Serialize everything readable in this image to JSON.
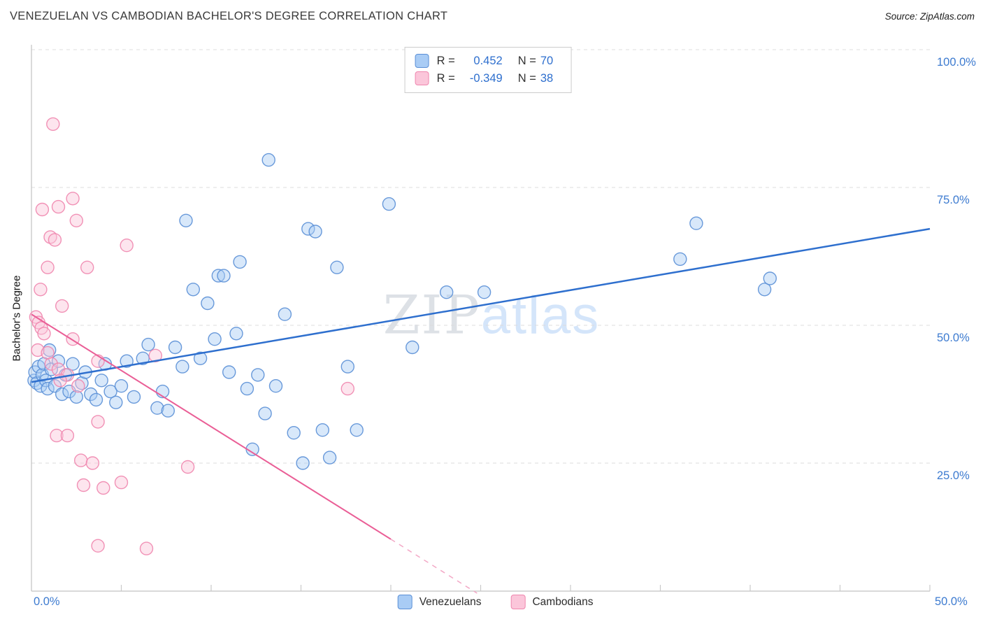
{
  "header": {
    "title": "VENEZUELAN VS CAMBODIAN BACHELOR'S DEGREE CORRELATION CHART",
    "source": "Source: ZipAtlas.com"
  },
  "colors": {
    "accent_blue": "#2e6fce",
    "tick_label_blue": "#3d7bd0",
    "grid_line": "#dcdcdc",
    "axis_line": "#c2c2c2",
    "title_text": "#3a3a3a",
    "watermark_gray": "#ccd2da",
    "watermark_blue": "#b9d5f8"
  },
  "stats_box": {
    "rows": [
      {
        "r_label": "R =",
        "r_value": "0.452",
        "n_label": "N =",
        "n_value": "70"
      },
      {
        "r_label": "R =",
        "r_value": "-0.349",
        "n_label": "N =",
        "n_value": "38"
      }
    ]
  },
  "axes": {
    "y_axis_label": "Bachelor's Degree",
    "y_tick_labels": [
      "100.0%",
      "75.0%",
      "50.0%",
      "25.0%"
    ],
    "x_min_label": "0.0%",
    "x_max_label": "50.0%"
  },
  "legend": {
    "items": [
      {
        "label": "Venezuelans"
      },
      {
        "label": "Cambodians"
      }
    ]
  },
  "watermark": {
    "part1": "ZIP",
    "part2": "atlas"
  },
  "chart_data": {
    "type": "scatter",
    "title": "VENEZUELAN VS CAMBODIAN BACHELOR'S DEGREE CORRELATION CHART",
    "ylabel": "Bachelor's Degree",
    "x_range": [
      0,
      50
    ],
    "y_range": [
      0,
      100
    ],
    "y_gridlines": [
      100,
      75,
      50,
      25
    ],
    "x_tick_step": 5,
    "grid": "horizontal-dashed",
    "legend_position": "bottom-center",
    "series": [
      {
        "name": "Venezuelans",
        "R": 0.452,
        "N": 70,
        "fill": "#a9ccf5",
        "stroke": "#5a8fd6",
        "points": [
          [
            0.15,
            40
          ],
          [
            0.2,
            41.5
          ],
          [
            0.3,
            39.5
          ],
          [
            0.4,
            42.5
          ],
          [
            0.5,
            39
          ],
          [
            0.6,
            41
          ],
          [
            0.7,
            43
          ],
          [
            0.8,
            40
          ],
          [
            0.9,
            38.5
          ],
          [
            1.0,
            45.5
          ],
          [
            1.1,
            42
          ],
          [
            1.3,
            39
          ],
          [
            1.5,
            43.5
          ],
          [
            1.7,
            37.5
          ],
          [
            1.9,
            41
          ],
          [
            2.1,
            38
          ],
          [
            2.3,
            43
          ],
          [
            2.5,
            37
          ],
          [
            2.8,
            39.5
          ],
          [
            3.0,
            41.5
          ],
          [
            3.3,
            37.5
          ],
          [
            3.6,
            36.5
          ],
          [
            3.9,
            40
          ],
          [
            4.1,
            43
          ],
          [
            4.4,
            38
          ],
          [
            4.7,
            36
          ],
          [
            5.0,
            39
          ],
          [
            5.3,
            43.5
          ],
          [
            5.7,
            37
          ],
          [
            6.2,
            44
          ],
          [
            6.5,
            46.5
          ],
          [
            7.0,
            35
          ],
          [
            7.3,
            38
          ],
          [
            7.6,
            34.5
          ],
          [
            8.0,
            46
          ],
          [
            8.4,
            42.5
          ],
          [
            8.6,
            69
          ],
          [
            9.0,
            56.5
          ],
          [
            9.4,
            44
          ],
          [
            9.8,
            54
          ],
          [
            10.2,
            47.5
          ],
          [
            10.4,
            59
          ],
          [
            10.7,
            59
          ],
          [
            11.0,
            41.5
          ],
          [
            11.4,
            48.5
          ],
          [
            11.6,
            61.5
          ],
          [
            12.0,
            38.5
          ],
          [
            12.3,
            27.5
          ],
          [
            12.6,
            41
          ],
          [
            13.0,
            34
          ],
          [
            13.2,
            80
          ],
          [
            13.6,
            39
          ],
          [
            14.1,
            52
          ],
          [
            14.6,
            30.5
          ],
          [
            15.1,
            25
          ],
          [
            15.4,
            67.5
          ],
          [
            15.8,
            67
          ],
          [
            16.2,
            31
          ],
          [
            16.6,
            26
          ],
          [
            17.0,
            60.5
          ],
          [
            17.6,
            42.5
          ],
          [
            18.1,
            31
          ],
          [
            19.9,
            72
          ],
          [
            21.2,
            46
          ],
          [
            23.1,
            56
          ],
          [
            25.2,
            56
          ],
          [
            36.1,
            62
          ],
          [
            37.0,
            68.5
          ],
          [
            40.8,
            56.5
          ],
          [
            41.1,
            58.5
          ]
        ]
      },
      {
        "name": "Cambodians",
        "R": -0.349,
        "N": 38,
        "fill": "#fbc6da",
        "stroke": "#ef86ae",
        "points": [
          [
            1.2,
            86.5
          ],
          [
            0.6,
            71
          ],
          [
            1.5,
            71.5
          ],
          [
            2.3,
            73
          ],
          [
            2.5,
            69
          ],
          [
            1.05,
            66
          ],
          [
            1.3,
            65.5
          ],
          [
            0.9,
            60.5
          ],
          [
            3.1,
            60.5
          ],
          [
            5.3,
            64.5
          ],
          [
            0.5,
            56.5
          ],
          [
            1.7,
            53.5
          ],
          [
            0.25,
            51.5
          ],
          [
            0.4,
            50.5
          ],
          [
            0.55,
            49.5
          ],
          [
            0.7,
            48.5
          ],
          [
            0.35,
            45.5
          ],
          [
            0.9,
            45
          ],
          [
            1.1,
            43
          ],
          [
            1.5,
            42
          ],
          [
            2.0,
            41
          ],
          [
            2.3,
            47.5
          ],
          [
            1.6,
            40
          ],
          [
            2.6,
            39
          ],
          [
            3.7,
            43.5
          ],
          [
            6.9,
            44.5
          ],
          [
            17.6,
            38.5
          ],
          [
            1.4,
            30
          ],
          [
            2.0,
            30
          ],
          [
            3.7,
            32.5
          ],
          [
            8.7,
            24.3
          ],
          [
            2.75,
            25.5
          ],
          [
            3.4,
            25
          ],
          [
            2.9,
            21
          ],
          [
            4.0,
            20.5
          ],
          [
            5.0,
            21.5
          ],
          [
            3.7,
            10
          ],
          [
            6.4,
            9.5
          ]
        ]
      }
    ],
    "trend_lines": [
      {
        "series": "Venezuelans",
        "color": "#2e6fce",
        "x1": 0,
        "y1": 39.7,
        "x2": 50,
        "y2": 67.5,
        "width": 2.5
      },
      {
        "series": "Cambodians",
        "color": "#ea5e96",
        "x1": 0,
        "y1": 52,
        "x2": 20,
        "y2": 11.2,
        "width": 2
      },
      {
        "series": "Cambodians",
        "color": "#f3a8c6",
        "x1": 20,
        "y1": 11.2,
        "x2": 24.8,
        "y2": 1.4,
        "width": 1.5,
        "dash": "7 7"
      }
    ]
  }
}
